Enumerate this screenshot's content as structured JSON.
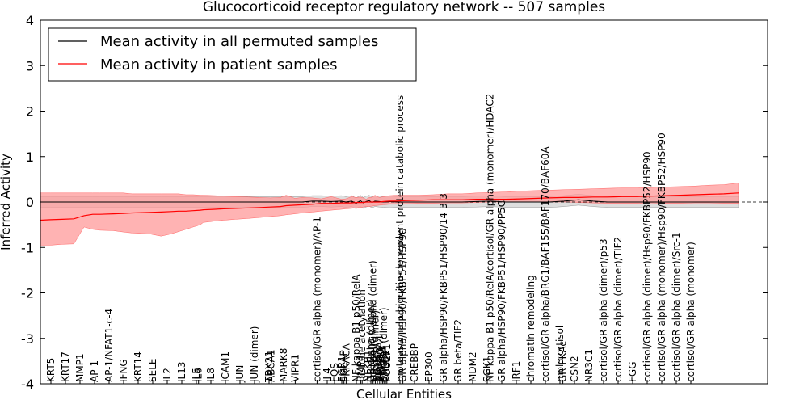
{
  "chart_data": {
    "type": "line",
    "title": "Glucocorticoid receptor regulatory network -- 507 samples",
    "xlabel": "Cellular Entities",
    "ylabel": "Inferred Activity",
    "ylim": [
      -4,
      4
    ],
    "yticks": [
      -4,
      -3,
      -2,
      -1,
      0,
      1,
      2,
      3,
      4
    ],
    "legend_position": "top-left",
    "colors": {
      "permuted": "#000000",
      "patient": "#ff0000",
      "band": "#ff9999",
      "perm_band": "#c8c8c8"
    },
    "x": [
      0,
      0.7,
      1.5,
      2.3,
      3,
      3.6,
      4.1,
      5,
      5.7,
      6.3,
      7.5,
      8.3,
      9,
      9.5,
      10,
      10.5,
      11,
      11.2,
      12,
      12.6,
      13.4,
      14.3,
      15.1,
      15.8,
      16.5,
      16.9,
      17.5,
      18,
      18.7,
      19.3,
      20,
      20.7,
      21,
      21.4,
      21.7,
      22,
      22.2,
      22.4,
      22.6,
      22.8,
      23,
      23.3,
      23.6,
      24,
      24.5,
      25,
      26,
      27,
      28,
      29,
      30,
      31,
      32,
      33,
      34,
      35,
      36,
      37,
      38,
      39,
      40,
      41,
      42,
      43,
      44,
      45,
      46,
      47,
      48
    ],
    "tick_labels": [
      "KRT5",
      "KRT17",
      "MMP1",
      "AP-1",
      "AP-1/NFAT1-c-4",
      "IFNG",
      "KRT14",
      "SELE",
      "IL2",
      "IL13",
      "IL5",
      "IL6",
      "IL8",
      "ICAM1",
      "JUN",
      "JUN (dimer)",
      "TBX21",
      "ABCA1",
      "MARK8",
      "VIPR1",
      "cortisol/GR alpha (monomer)/AP-1",
      "IL4",
      "FOS",
      "EGR1",
      "BGLAP",
      "PRKACA",
      "NF kappa B1 p50/RelA",
      "BMP4",
      "histone acetylation",
      "NFKB1",
      "GR alpha (dimer)",
      "cortisol/GR alpha (dimer)",
      "NR3C1 (dimer)",
      "NFATC2",
      "SMARCA4",
      "ARID1A",
      "BCL2L1",
      "STAT5A (dimer)",
      "CREB1",
      "POU2F1",
      "proteasomal ubiquitin-dependent protein catabolic process",
      "GR alpha/HSP90/FKBP51/HSP90",
      "CREBBP",
      "EP300",
      "GR alpha/HSP90/FKBP51/HSP90/14-3-3",
      "GR beta/TIF2",
      "MDM2",
      "SGK1",
      "NF kappa B1 p50/RelA/cortisol/GR alpha (monomer)/HDAC2",
      "GR alpha/HSP90/FKBP51/HSP90/PP5C",
      "IRF1",
      "chromatin remodeling",
      "cortisol/GR alpha/BRG1/BAF155/BAF170/BAF60A",
      "mol:cortisol",
      "GR PKAc",
      "CSN2",
      "NR3C1",
      "cortisol/GR alpha (dimer)/p53",
      "cortisol/GR alpha (dimer)/TIF2",
      "FGG",
      "cortisol/GR alpha (dimer)/Hsp90/FKBP52/HSP90",
      "cortisol/GR alpha (monomer)/Hsp90/FKBP52/HSP90",
      "cortisol/GR alpha (dimer)/Src-1",
      "cortisol/GR alpha (monomer)"
    ],
    "tick_pos": [
      0,
      1,
      2,
      3,
      4,
      5,
      6,
      7,
      8,
      9,
      10,
      10.15,
      11,
      12,
      13,
      14,
      15,
      15.15,
      16,
      16.8,
      18.3,
      19,
      19.5,
      20,
      20.15,
      20.3,
      21,
      21.3,
      21.4,
      21.8,
      22,
      22.15,
      22.3,
      22.45,
      22.6,
      22.7,
      22.8,
      22.9,
      23,
      23.1,
      24,
      24.2,
      25,
      26,
      27,
      28,
      29,
      30,
      30.2,
      31,
      32,
      33,
      34,
      35,
      35.2,
      36,
      37,
      38,
      39,
      40,
      41,
      42,
      43,
      44
    ],
    "series": [
      {
        "name": "Mean activity in all permuted samples",
        "values": [
          0,
          0,
          0,
          0,
          0,
          0,
          0,
          0,
          0,
          0,
          0,
          0,
          0,
          0,
          0,
          0,
          0,
          0,
          0,
          0,
          0,
          0,
          0,
          0,
          0,
          0,
          0,
          0,
          0.02,
          0.02,
          0.01,
          0.02,
          0,
          0.02,
          -0.03,
          0.03,
          -0.02,
          0.01,
          0.03,
          -0.01,
          0.02,
          0.01,
          0,
          0.01,
          0,
          0,
          0,
          0,
          0,
          0,
          0.01,
          0.02,
          0,
          0,
          0,
          0,
          0.02,
          0.05,
          0.02,
          0,
          0,
          0,
          0,
          0,
          0,
          0,
          0,
          0,
          0
        ]
      },
      {
        "name": "Mean activity in patient samples",
        "values": [
          -0.4,
          -0.39,
          -0.38,
          -0.37,
          -0.3,
          -0.27,
          -0.27,
          -0.26,
          -0.25,
          -0.24,
          -0.23,
          -0.22,
          -0.21,
          -0.2,
          -0.2,
          -0.19,
          -0.18,
          -0.17,
          -0.16,
          -0.15,
          -0.14,
          -0.13,
          -0.12,
          -0.11,
          -0.1,
          -0.08,
          -0.07,
          -0.06,
          -0.05,
          -0.03,
          -0.03,
          -0.02,
          -0.02,
          -0.02,
          -0.01,
          -0.01,
          -0.01,
          0,
          0,
          0,
          0,
          0,
          0.01,
          0.02,
          0.02,
          0.03,
          0.04,
          0.05,
          0.05,
          0.05,
          0.06,
          0.06,
          0.06,
          0.07,
          0.08,
          0.09,
          0.1,
          0.1,
          0.11,
          0.11,
          0.12,
          0.12,
          0.13,
          0.14,
          0.15,
          0.16,
          0.17,
          0.18,
          0.2
        ]
      }
    ],
    "patient_band_upper": [
      0.2,
      0.2,
      0.2,
      0.2,
      0.2,
      0.2,
      0.2,
      0.2,
      0.2,
      0.18,
      0.18,
      0.18,
      0.18,
      0.18,
      0.16,
      0.16,
      0.15,
      0.15,
      0.14,
      0.13,
      0.12,
      0.11,
      0.1,
      0.09,
      0.1,
      0.15,
      0.08,
      0.1,
      0.09,
      0.07,
      0.12,
      0.06,
      0.07,
      0.12,
      0.1,
      0.11,
      0.09,
      0.06,
      0.1,
      0.1,
      0.15,
      0.1,
      0.12,
      0.14,
      0.15,
      0.15,
      0.15,
      0.16,
      0.18,
      0.18,
      0.2,
      0.21,
      0.22,
      0.24,
      0.25,
      0.26,
      0.27,
      0.28,
      0.29,
      0.3,
      0.31,
      0.31,
      0.32,
      0.33,
      0.34,
      0.35,
      0.37,
      0.38,
      0.42
    ],
    "patient_band_lower": [
      -0.95,
      -0.95,
      -0.93,
      -0.92,
      -0.55,
      -0.6,
      -0.62,
      -0.63,
      -0.66,
      -0.68,
      -0.7,
      -0.75,
      -0.7,
      -0.65,
      -0.6,
      -0.55,
      -0.5,
      -0.45,
      -0.42,
      -0.4,
      -0.38,
      -0.36,
      -0.34,
      -0.32,
      -0.3,
      -0.28,
      -0.26,
      -0.24,
      -0.22,
      -0.2,
      -0.18,
      -0.16,
      -0.15,
      -0.14,
      -0.13,
      -0.12,
      -0.11,
      -0.1,
      -0.1,
      -0.09,
      -0.08,
      -0.07,
      -0.06,
      -0.05,
      -0.05,
      -0.04,
      -0.03,
      -0.03,
      -0.02,
      -0.02,
      -0.01,
      0,
      0,
      0,
      0,
      0,
      0,
      -0.01,
      -0.02,
      -0.03,
      -0.03,
      -0.03,
      -0.02,
      -0.03,
      -0.03,
      -0.02,
      -0.02,
      -0.03,
      -0.03
    ],
    "permuted_band": 0.12
  }
}
